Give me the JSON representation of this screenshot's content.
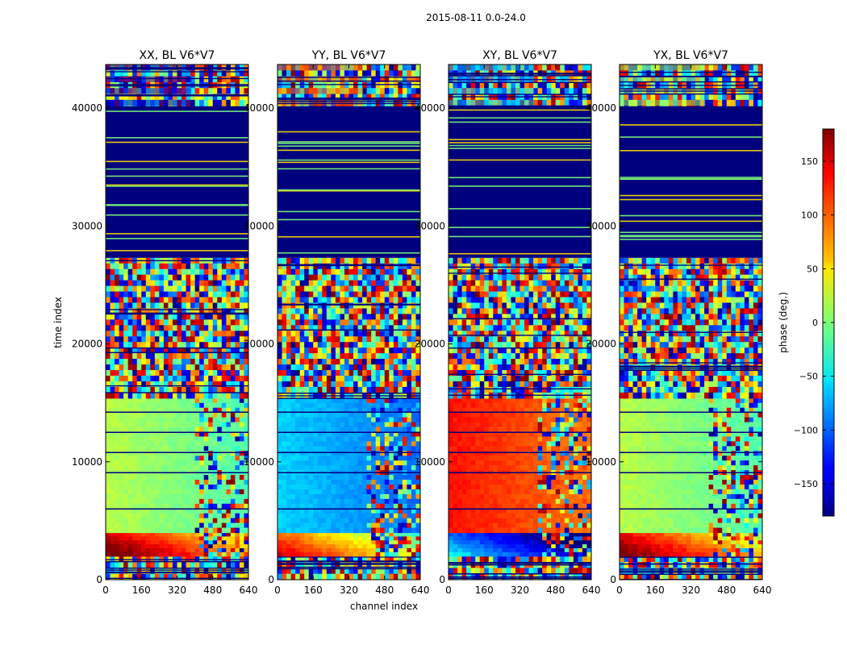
{
  "chart_data": {
    "type": "heatmap",
    "title": "2015-08-11 0.0-24.0",
    "xlabel": "channel index",
    "ylabel": "time index",
    "xlim": [
      0,
      640
    ],
    "ylim": [
      0,
      43700
    ],
    "x_ticks": [
      "0",
      "160",
      "320",
      "480",
      "640"
    ],
    "y_ticks": [
      "0",
      "10000",
      "20000",
      "30000",
      "40000"
    ],
    "panels": [
      {
        "title": "XX, BL V6*V7",
        "low_band_phase": 20,
        "sweep_phase": 150,
        "top_phase": -150
      },
      {
        "title": "YY, BL V6*V7",
        "low_band_phase": -60,
        "sweep_phase": 100,
        "top_phase": 90
      },
      {
        "title": "XY, BL V6*V7",
        "low_band_phase": 130,
        "sweep_phase": -100,
        "top_phase": -70
      },
      {
        "title": "YX, BL V6*V7",
        "low_band_phase": 20,
        "sweep_phase": 140,
        "top_phase": 10
      }
    ],
    "colorbar": {
      "label": "phase (deg.)",
      "range": [
        -180,
        180
      ],
      "ticks": [
        "150",
        "100",
        "50",
        "0",
        "−50",
        "−100",
        "−150"
      ],
      "tick_values": [
        150,
        100,
        50,
        0,
        -50,
        -100,
        -150
      ],
      "colormap": "jet"
    },
    "time_bands": [
      {
        "from": 0,
        "to": 2000,
        "kind": "noisy"
      },
      {
        "from": 2000,
        "to": 4000,
        "kind": "sweep"
      },
      {
        "from": 4000,
        "to": 15400,
        "kind": "smooth"
      },
      {
        "from": 15400,
        "to": 27300,
        "kind": "noisy"
      },
      {
        "from": 27300,
        "to": 40200,
        "kind": "flagged"
      },
      {
        "from": 40200,
        "to": 43700,
        "kind": "noisy"
      }
    ],
    "colors": {
      "flagged": "#00007f",
      "axes": "#000000"
    }
  }
}
